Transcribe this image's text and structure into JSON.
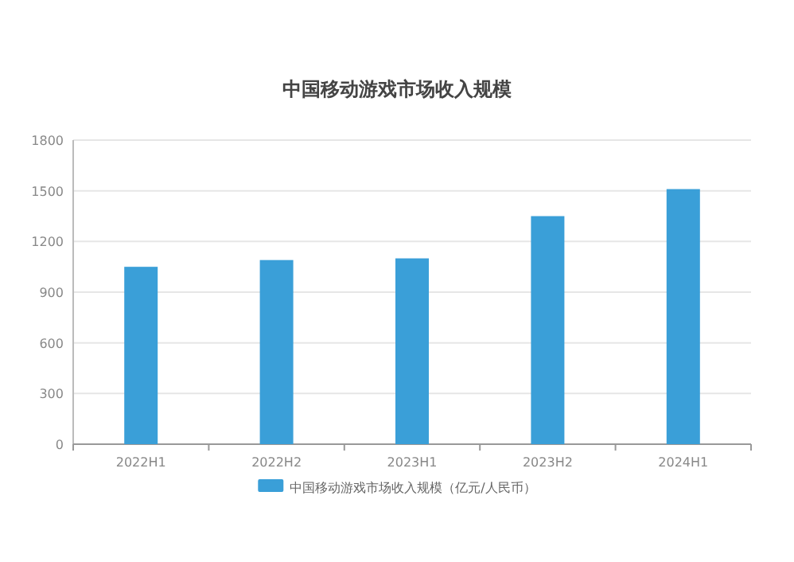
{
  "chart_data": {
    "type": "bar",
    "title": "中国移动游戏市场收入规模",
    "categories": [
      "2022H1",
      "2022H2",
      "2023H1",
      "2023H2",
      "2024H1"
    ],
    "series": [
      {
        "name": "中国移动游戏市场收入规模（亿元/人民币）",
        "color": "#3a9fd8",
        "values": [
          1050,
          1090,
          1100,
          1350,
          1510
        ]
      }
    ],
    "ylim": [
      0,
      1800
    ],
    "yticks": [
      0,
      300,
      600,
      900,
      1200,
      1500,
      1800
    ],
    "grid": "y",
    "legend": "bottom"
  }
}
